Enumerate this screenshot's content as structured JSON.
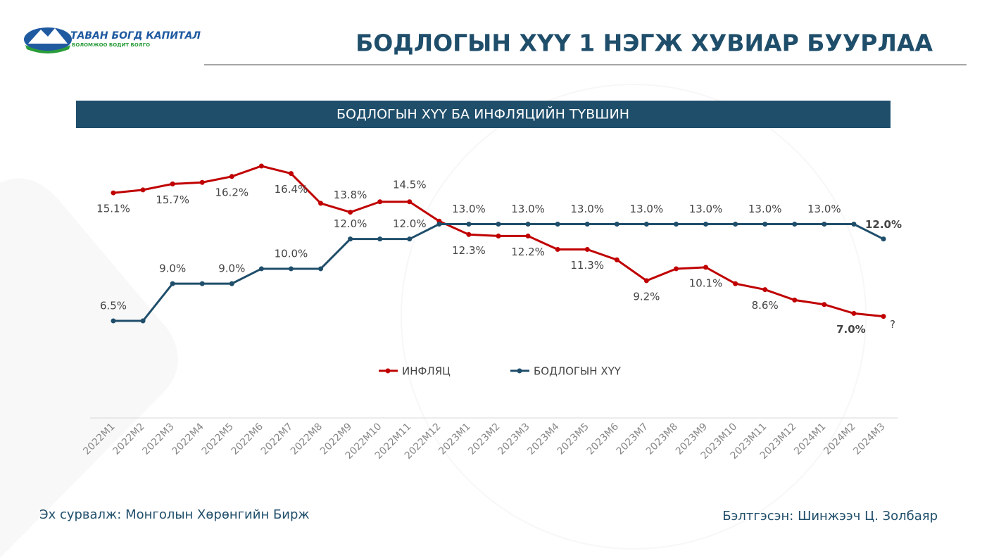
{
  "header": {
    "logo_name": "ТАВАН БОГД КАПИТАЛ",
    "logo_slogan": "БОЛОМЖОО БОДИТ БОЛГО",
    "title": "БОДЛОГЫН ХҮҮ 1 НЭГЖ ХУВИАР БУУРЛАА"
  },
  "chart_data": {
    "type": "line",
    "title": "БОДЛОГЫН ХҮҮ БА ИНФЛЯЦИЙН ТҮВШИН",
    "categories": [
      "2022M1",
      "2022M2",
      "2022M3",
      "2022M4",
      "2022M5",
      "2022M6",
      "2022M7",
      "2022M8",
      "2022M9",
      "2022M10",
      "2022M11",
      "2022M12",
      "2023M1",
      "2023M2",
      "2023M3",
      "2023M4",
      "2023M5",
      "2023M6",
      "2023M7",
      "2023M8",
      "2023M9",
      "2023M10",
      "2023M11",
      "2023M12",
      "2024M1",
      "2024M2",
      "2024M3"
    ],
    "series": [
      {
        "name": "ИНФЛЯЦ",
        "color": "#c00000",
        "values": [
          15.1,
          15.3,
          15.7,
          15.8,
          16.2,
          16.9,
          16.4,
          14.4,
          13.8,
          14.5,
          14.5,
          13.2,
          12.3,
          12.2,
          12.2,
          11.3,
          11.3,
          10.6,
          9.2,
          10.0,
          10.1,
          9.0,
          8.6,
          7.9,
          7.6,
          7.0,
          6.8
        ],
        "value_labels": [
          "15.1%",
          null,
          "15.7%",
          null,
          "16.2%",
          null,
          "16.4%",
          null,
          "13.8%",
          null,
          "14.5%",
          null,
          "12.3%",
          null,
          "12.2%",
          null,
          "11.3%",
          null,
          "9.2%",
          null,
          "10.1%",
          null,
          "8.6%",
          null,
          null,
          "7.0%",
          null
        ]
      },
      {
        "name": "БОДЛОГЫН ХҮҮ",
        "color": "#1f4e6b",
        "values": [
          6.5,
          6.5,
          9.0,
          9.0,
          9.0,
          10.0,
          10.0,
          10.0,
          12.0,
          12.0,
          12.0,
          13.0,
          13.0,
          13.0,
          13.0,
          13.0,
          13.0,
          13.0,
          13.0,
          13.0,
          13.0,
          13.0,
          13.0,
          13.0,
          13.0,
          13.0,
          12.0
        ],
        "value_labels": [
          "6.5%",
          null,
          "9.0%",
          null,
          "9.0%",
          null,
          "10.0%",
          null,
          "12.0%",
          null,
          "12.0%",
          null,
          "13.0%",
          null,
          "13.0%",
          null,
          "13.0%",
          null,
          "13.0%",
          null,
          "13.0%",
          null,
          "13.0%",
          null,
          "13.0%",
          null,
          "12.0%"
        ]
      }
    ],
    "annotation": "?",
    "legend": "bottom"
  },
  "footer": {
    "source": "Эх сурвалж: Монголын Хөрөнгийн Бирж",
    "author": "Бэлтгэсэн: Шинжээч Ц. Золбаяр"
  }
}
